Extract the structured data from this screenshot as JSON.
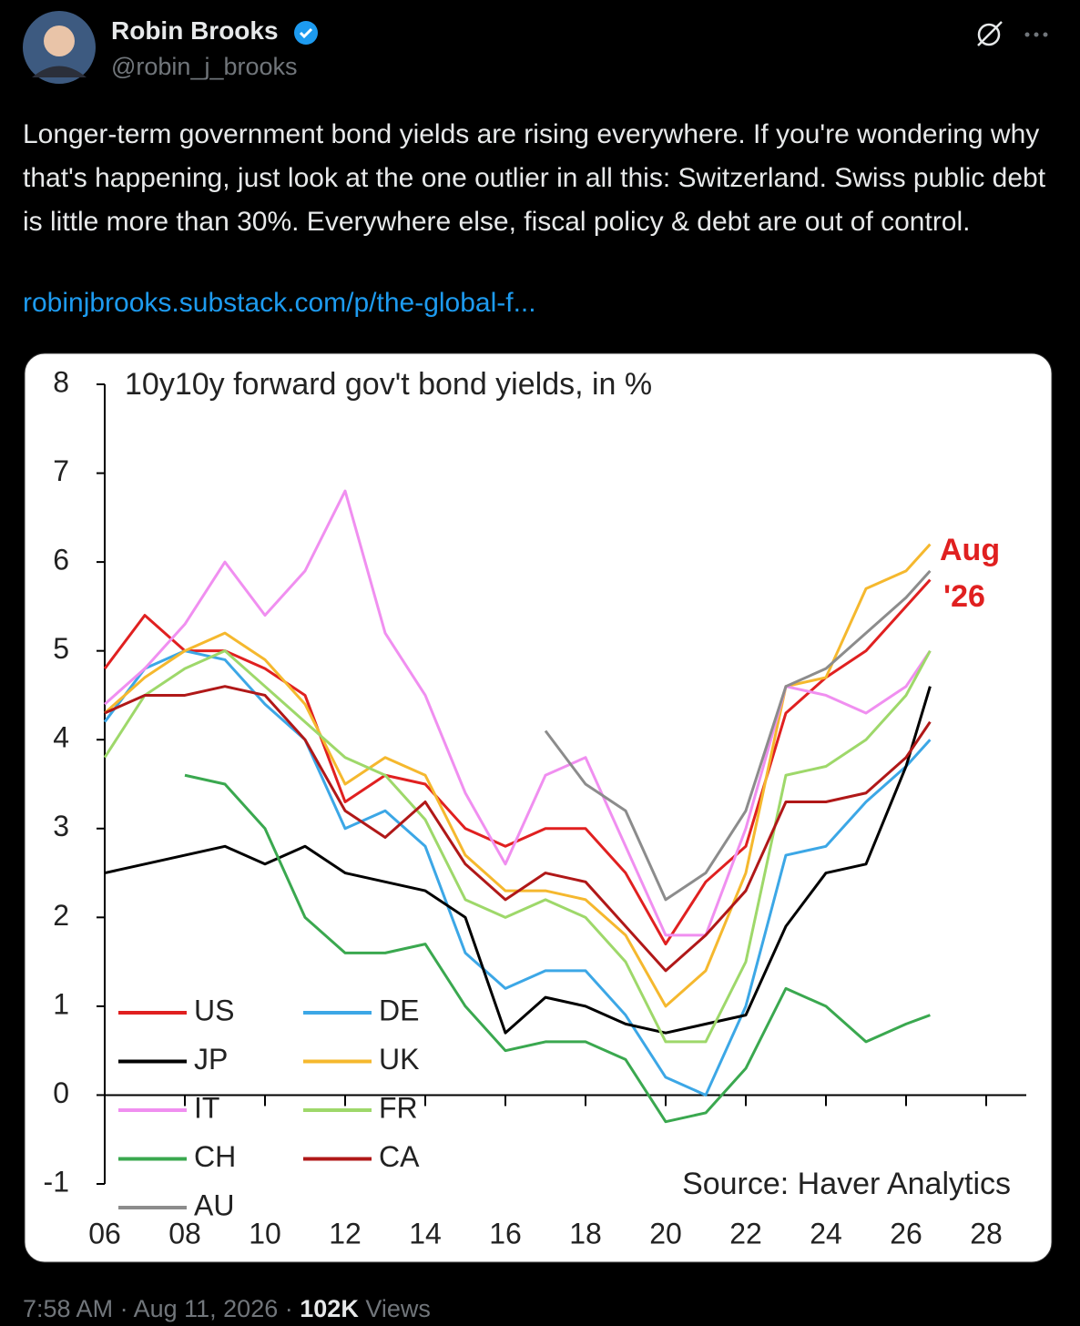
{
  "tweet": {
    "author": {
      "name": "Robin Brooks",
      "handle": "@robin_j_brooks"
    },
    "text": "Longer-term government bond yields are rising everywhere. If you're wondering why that's happening, just look at the one outlier in all this: Switzerland. Swiss public debt is little more than 30%. Everywhere else, fiscal policy & debt are out of control.",
    "link": "robinjbrooks.substack.com/p/the-global-f...",
    "time": "7:58 AM",
    "separator": "·",
    "date": "Aug 11, 2026",
    "views": "102K",
    "views_label": "Views"
  },
  "chart_data": {
    "type": "line",
    "title": "10y10y forward gov't bond yields, in %",
    "annotation": [
      "Aug",
      "'26"
    ],
    "source": "Source: Haver Analytics",
    "x": [
      2006,
      2007,
      2008,
      2009,
      2010,
      2011,
      2012,
      2013,
      2014,
      2015,
      2016,
      2017,
      2018,
      2019,
      2020,
      2021,
      2022,
      2023,
      2024,
      2025,
      2026,
      2026.6
    ],
    "series": [
      {
        "name": "US",
        "color": "#e02020",
        "values": [
          4.8,
          5.4,
          5.0,
          5.0,
          4.8,
          4.5,
          3.3,
          3.6,
          3.5,
          3.0,
          2.8,
          3.0,
          3.0,
          2.5,
          1.7,
          2.4,
          2.8,
          4.3,
          4.7,
          5.0,
          5.5,
          5.8
        ]
      },
      {
        "name": "DE",
        "color": "#3ca7e6",
        "values": [
          4.2,
          4.8,
          5.0,
          4.9,
          4.4,
          4.0,
          3.0,
          3.2,
          2.8,
          1.6,
          1.2,
          1.4,
          1.4,
          0.9,
          0.2,
          0.0,
          1.0,
          2.7,
          2.8,
          3.3,
          3.7,
          4.0
        ]
      },
      {
        "name": "JP",
        "color": "#000000",
        "values": [
          2.5,
          2.6,
          2.7,
          2.8,
          2.6,
          2.8,
          2.5,
          2.4,
          2.3,
          2.0,
          0.7,
          1.1,
          1.0,
          0.8,
          0.7,
          0.8,
          0.9,
          1.9,
          2.5,
          2.6,
          3.7,
          4.6
        ]
      },
      {
        "name": "UK",
        "color": "#f5b82e",
        "values": [
          4.3,
          4.7,
          5.0,
          5.2,
          4.9,
          4.4,
          3.5,
          3.8,
          3.6,
          2.7,
          2.3,
          2.3,
          2.2,
          1.8,
          1.0,
          1.4,
          2.5,
          4.6,
          4.7,
          5.7,
          5.9,
          6.2
        ]
      },
      {
        "name": "IT",
        "color": "#f08ff0",
        "values": [
          4.4,
          4.8,
          5.3,
          6.0,
          5.4,
          5.9,
          6.8,
          5.2,
          4.5,
          3.4,
          2.6,
          3.6,
          3.8,
          2.8,
          1.8,
          1.8,
          3.0,
          4.6,
          4.5,
          4.3,
          4.6,
          5.0
        ]
      },
      {
        "name": "FR",
        "color": "#9ed86a",
        "values": [
          3.8,
          4.5,
          4.8,
          5.0,
          4.6,
          4.2,
          3.8,
          3.6,
          3.1,
          2.2,
          2.0,
          2.2,
          2.0,
          1.5,
          0.6,
          0.6,
          1.5,
          3.6,
          3.7,
          4.0,
          4.5,
          5.0
        ]
      },
      {
        "name": "CH",
        "color": "#3aa84f",
        "values": [
          null,
          null,
          3.6,
          3.5,
          3.0,
          2.0,
          1.6,
          1.6,
          1.7,
          1.0,
          0.5,
          0.6,
          0.6,
          0.4,
          -0.3,
          -0.2,
          0.3,
          1.2,
          1.0,
          0.6,
          0.8,
          0.9
        ]
      },
      {
        "name": "CA",
        "color": "#b01818",
        "values": [
          4.3,
          4.5,
          4.5,
          4.6,
          4.5,
          4.0,
          3.2,
          2.9,
          3.3,
          2.6,
          2.2,
          2.5,
          2.4,
          1.9,
          1.4,
          1.8,
          2.3,
          3.3,
          3.3,
          3.4,
          3.8,
          4.2
        ]
      },
      {
        "name": "AU",
        "color": "#8c8c8c",
        "values": [
          null,
          null,
          null,
          null,
          null,
          null,
          null,
          null,
          null,
          null,
          null,
          4.1,
          3.5,
          3.2,
          2.2,
          2.5,
          3.2,
          4.6,
          4.8,
          5.2,
          5.6,
          5.9
        ]
      }
    ],
    "xlim": [
      2006,
      2029
    ],
    "ylim": [
      -1,
      8
    ],
    "xticks": [
      {
        "value": 2006,
        "label": "06"
      },
      {
        "value": 2008,
        "label": "08"
      },
      {
        "value": 2010,
        "label": "10"
      },
      {
        "value": 2012,
        "label": "12"
      },
      {
        "value": 2014,
        "label": "14"
      },
      {
        "value": 2016,
        "label": "16"
      },
      {
        "value": 2018,
        "label": "18"
      },
      {
        "value": 2020,
        "label": "20"
      },
      {
        "value": 2022,
        "label": "22"
      },
      {
        "value": 2024,
        "label": "24"
      },
      {
        "value": 2026,
        "label": "26"
      },
      {
        "value": 2028,
        "label": "28"
      }
    ],
    "yticks": [
      -1,
      0,
      1,
      2,
      3,
      4,
      5,
      6,
      7,
      8
    ]
  }
}
